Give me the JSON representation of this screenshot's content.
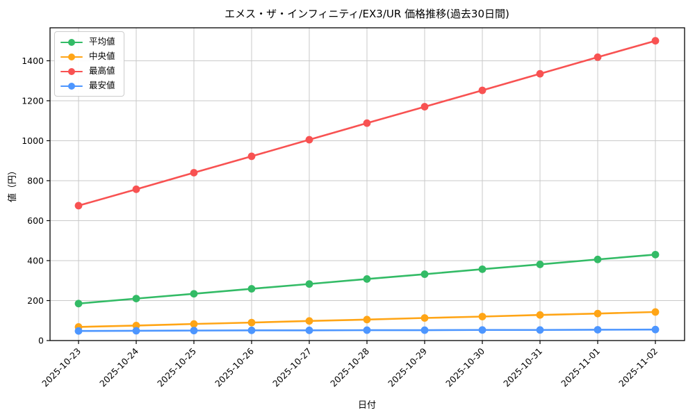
{
  "chart_data": {
    "type": "line",
    "title": "エメス・ザ・インフィニティ/EX3/UR 価格推移(過去30日間)",
    "xlabel": "日付",
    "ylabel": "値（円）",
    "x": [
      "2025-10-23",
      "2025-10-24",
      "2025-10-25",
      "2025-10-26",
      "2025-10-27",
      "2025-10-28",
      "2025-10-29",
      "2025-10-30",
      "2025-10-31",
      "2025-11-01",
      "2025-11-02"
    ],
    "ylim": [
      0,
      1565
    ],
    "yticks": [
      0,
      200,
      400,
      600,
      800,
      1000,
      1200,
      1400
    ],
    "grid": true,
    "grid_color": "#c9c9c9",
    "spine_color": "#000000",
    "background_color": "#ffffff",
    "legend_position": "upper left",
    "series": [
      {
        "name": "平均値",
        "color": "#33bb66",
        "values": [
          185,
          210,
          234,
          259,
          283,
          308,
          332,
          357,
          381,
          406,
          430
        ]
      },
      {
        "name": "中央値",
        "color": "#ffa516",
        "values": [
          68,
          75,
          83,
          90,
          98,
          105,
          113,
          120,
          128,
          135,
          143
        ]
      },
      {
        "name": "最高値",
        "color": "#f85252",
        "values": [
          675,
          757,
          840,
          922,
          1005,
          1088,
          1170,
          1252,
          1335,
          1418,
          1500
        ]
      },
      {
        "name": "最安値",
        "color": "#4d96ff",
        "values": [
          48,
          49,
          50,
          51,
          51,
          52,
          52,
          53,
          53,
          54,
          55
        ]
      }
    ]
  }
}
